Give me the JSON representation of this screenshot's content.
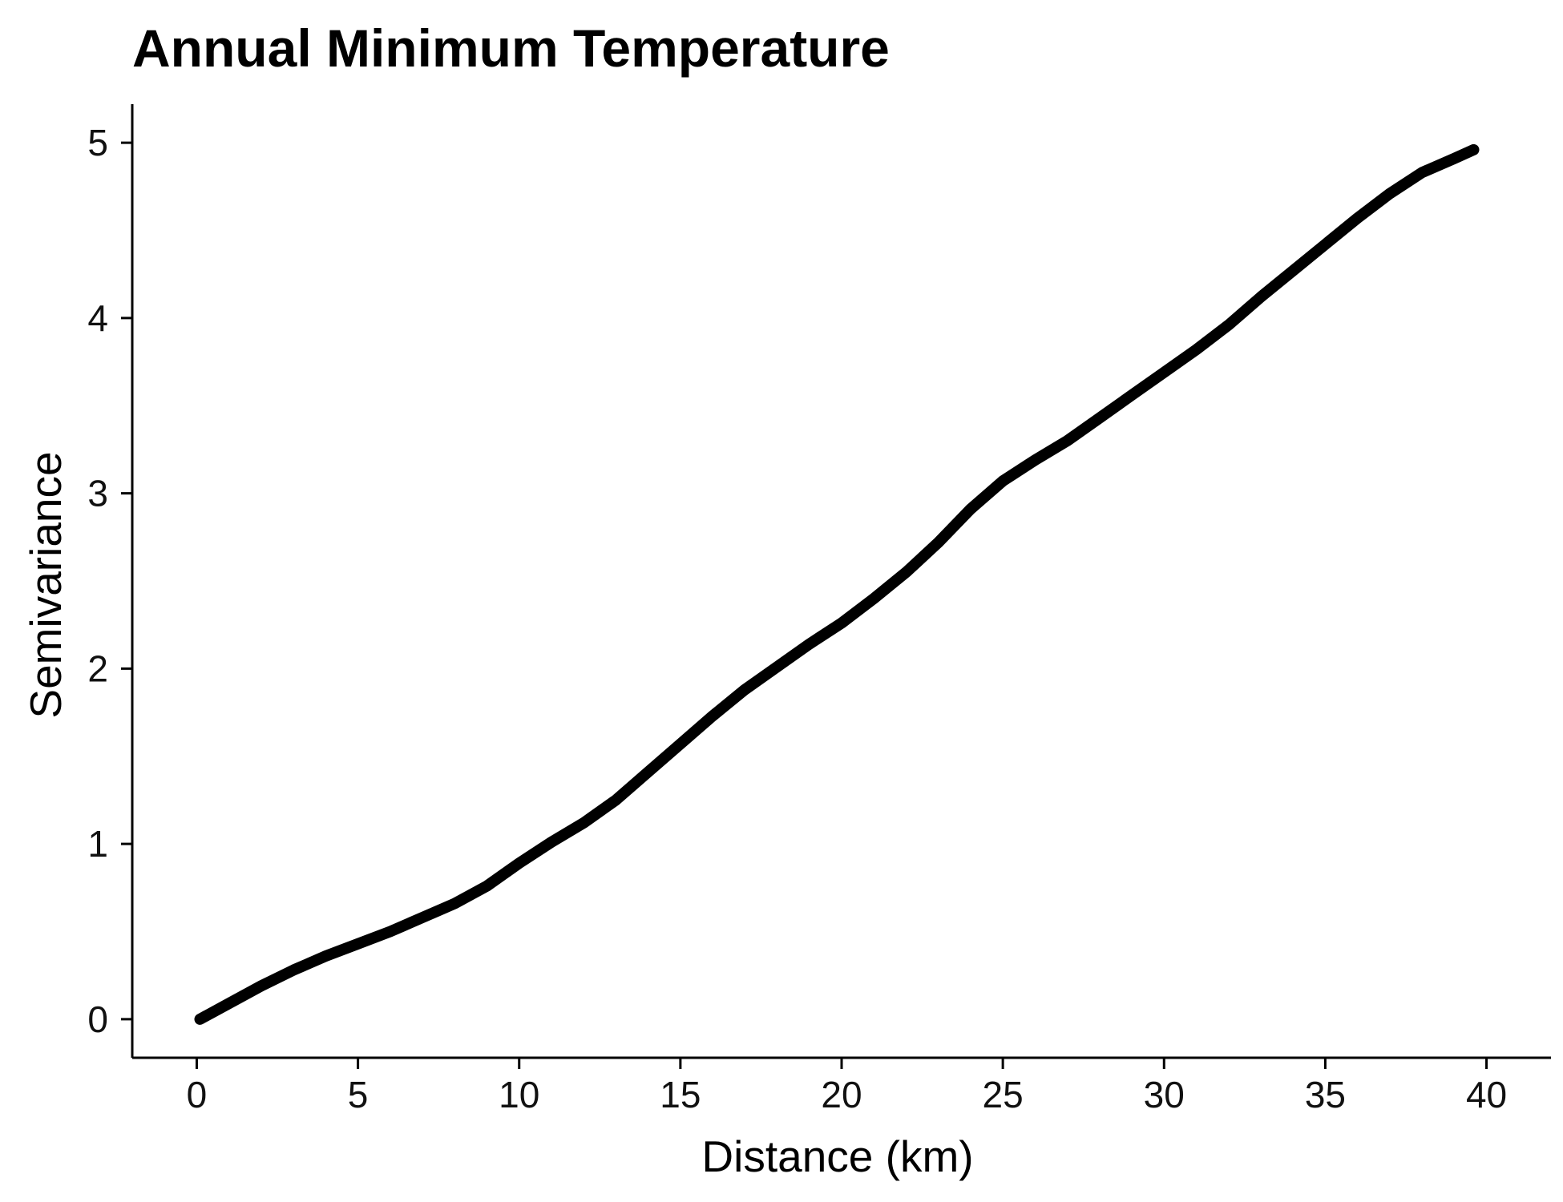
{
  "chart_data": {
    "type": "line",
    "title": "Annual Minimum Temperature",
    "xlabel": "Distance (km)",
    "ylabel": "Semivariance",
    "xlim": [
      -2,
      42
    ],
    "ylim": [
      -0.22,
      5.22
    ],
    "x_ticks": [
      0,
      5,
      10,
      15,
      20,
      25,
      30,
      35,
      40
    ],
    "y_ticks": [
      0,
      1,
      2,
      3,
      4,
      5
    ],
    "x_tick_labels": [
      "0",
      "5",
      "10",
      "15",
      "20",
      "25",
      "30",
      "35",
      "40"
    ],
    "y_tick_labels": [
      "0",
      "1",
      "2",
      "3",
      "4",
      "5"
    ],
    "grid": false,
    "series": [
      {
        "color": "#000000",
        "x": [
          0.1,
          1,
          2,
          3,
          4,
          5,
          6,
          7,
          8,
          9,
          10,
          11,
          12,
          13,
          14,
          15,
          16,
          17,
          18,
          19,
          20,
          21,
          22,
          23,
          24,
          25,
          26,
          27,
          28,
          29,
          30,
          31,
          32,
          33,
          34,
          35,
          36,
          37,
          38,
          39,
          39.6
        ],
        "y": [
          0.0,
          0.09,
          0.19,
          0.28,
          0.36,
          0.43,
          0.5,
          0.58,
          0.66,
          0.76,
          0.89,
          1.01,
          1.12,
          1.25,
          1.41,
          1.57,
          1.73,
          1.88,
          2.01,
          2.14,
          2.26,
          2.4,
          2.55,
          2.72,
          2.91,
          3.07,
          3.19,
          3.3,
          3.43,
          3.56,
          3.69,
          3.82,
          3.96,
          4.12,
          4.27,
          4.42,
          4.57,
          4.71,
          4.83,
          4.91,
          4.96
        ]
      }
    ]
  }
}
